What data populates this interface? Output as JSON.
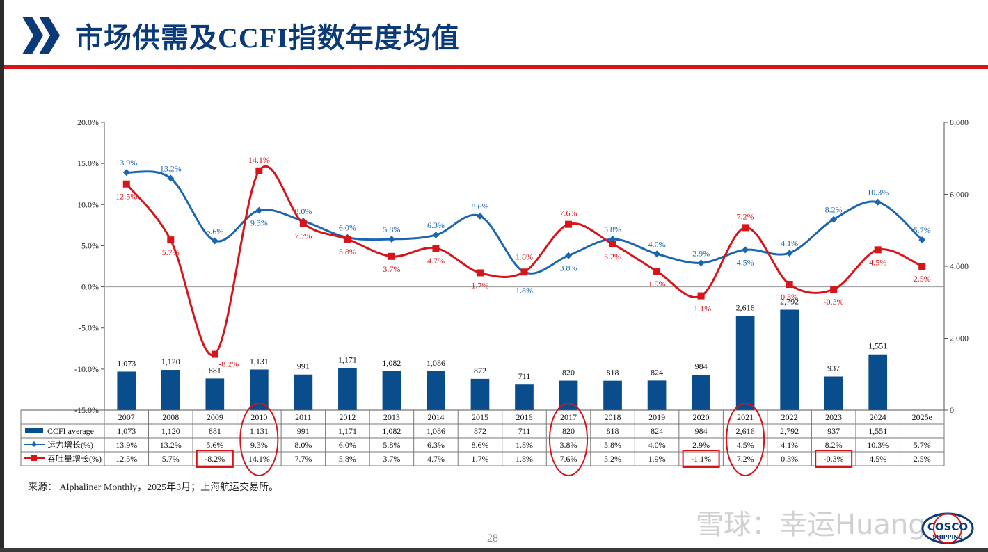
{
  "header": {
    "title": "市场供需及CCFI指数年度均值"
  },
  "source_note": "来源： Alphaliner Monthly，2025年3月；上海航运交易所。",
  "page_number": "28",
  "watermark": "雪球：幸运Huang",
  "logo": {
    "line1": "COSCO",
    "line2": "SHIPPING"
  },
  "colors": {
    "bar": "#0a4d8c",
    "supply": "#1b66b0",
    "demand": "#d7141a",
    "accent_red": "#d7141a",
    "title": "#0b3a78"
  },
  "chart_data": {
    "type": "bar+line",
    "categories": [
      "2007",
      "2008",
      "2009",
      "2010",
      "2011",
      "2012",
      "2013",
      "2014",
      "2015",
      "2016",
      "2017",
      "2018",
      "2019",
      "2020",
      "2021",
      "2022",
      "2023",
      "2024",
      "2025e"
    ],
    "left_axis": {
      "ylim": [
        -15,
        20
      ],
      "ticks": [
        "20.0%",
        "15.0%",
        "10.0%",
        "5.0%",
        "0.0%",
        "-5.0%",
        "-10.0%",
        "-15.0%"
      ]
    },
    "right_axis": {
      "ylim": [
        0,
        8000
      ],
      "ticks": [
        "8,000",
        "6,000",
        "4,000",
        "2,000",
        "0"
      ]
    },
    "bars": {
      "name": "CCFI average",
      "values": [
        1073,
        1120,
        881,
        1131,
        991,
        1171,
        1082,
        1086,
        872,
        711,
        820,
        818,
        824,
        984,
        2616,
        2792,
        937,
        1551,
        null
      ],
      "labels": [
        "1,073",
        "1,120",
        "881",
        "1,131",
        "991",
        "1,171",
        "1,082",
        "1,086",
        "872",
        "711",
        "820",
        "818",
        "824",
        "984",
        "2,616",
        "2,792",
        "937",
        "1,551",
        ""
      ]
    },
    "series": [
      {
        "name": "运力增长(%)",
        "values": [
          13.9,
          13.2,
          5.6,
          9.3,
          8.0,
          6.0,
          5.8,
          6.3,
          8.6,
          1.8,
          3.8,
          5.8,
          4.0,
          2.9,
          4.5,
          4.1,
          8.2,
          10.3,
          5.7
        ],
        "labels": [
          "13.9%",
          "13.2%",
          "5.6%",
          "9.3%",
          "8.0%",
          "6.0%",
          "5.8%",
          "6.3%",
          "8.6%",
          "1.8%",
          "3.8%",
          "5.8%",
          "4.0%",
          "2.9%",
          "4.5%",
          "4.1%",
          "8.2%",
          "10.3%",
          "5.7%"
        ]
      },
      {
        "name": "吞吐量增长(%)",
        "values": [
          12.5,
          5.7,
          -8.2,
          14.1,
          7.7,
          5.8,
          3.7,
          4.7,
          1.7,
          1.8,
          7.6,
          5.2,
          1.9,
          -1.1,
          7.2,
          0.3,
          -0.3,
          4.5,
          2.5
        ],
        "labels": [
          "12.5%",
          "5.7%",
          "-8.2%",
          "14.1%",
          "7.7%",
          "5.8%",
          "3.7%",
          "4.7%",
          "1.7%",
          "1.8%",
          "7.6%",
          "5.2%",
          "1.9%",
          "-1.1%",
          "7.2%",
          "0.3%",
          "-0.3%",
          "4.5%",
          "2.5%"
        ]
      }
    ],
    "table": {
      "rows": [
        {
          "name": "CCFI average",
          "cells": [
            "1,073",
            "1,120",
            "881",
            "1,131",
            "991",
            "1,171",
            "1,082",
            "1,086",
            "872",
            "711",
            "820",
            "818",
            "824",
            "984",
            "2,616",
            "2,792",
            "937",
            "1,551",
            ""
          ]
        },
        {
          "name": "运力增长(%)",
          "cells": [
            "13.9%",
            "13.2%",
            "5.6%",
            "9.3%",
            "8.0%",
            "6.0%",
            "5.8%",
            "6.3%",
            "8.6%",
            "1.8%",
            "3.8%",
            "5.8%",
            "4.0%",
            "2.9%",
            "4.5%",
            "4.1%",
            "8.2%",
            "10.3%",
            "5.7%"
          ]
        },
        {
          "name": "吞吐量增长(%)",
          "cells": [
            "12.5%",
            "5.7%",
            "-8.2%",
            "14.1%",
            "7.7%",
            "5.8%",
            "3.7%",
            "4.7%",
            "1.7%",
            "1.8%",
            "7.6%",
            "5.2%",
            "1.9%",
            "-1.1%",
            "7.2%",
            "0.3%",
            "-0.3%",
            "4.5%",
            "2.5%"
          ]
        }
      ]
    },
    "highlights": {
      "ellipse_columns": [
        "2010",
        "2017",
        "2021"
      ],
      "boxed_cells": [
        {
          "row": 2,
          "col": "2009"
        },
        {
          "row": 2,
          "col": "2020"
        },
        {
          "row": 2,
          "col": "2023"
        }
      ]
    },
    "grid": false,
    "legend": "in table rows"
  }
}
